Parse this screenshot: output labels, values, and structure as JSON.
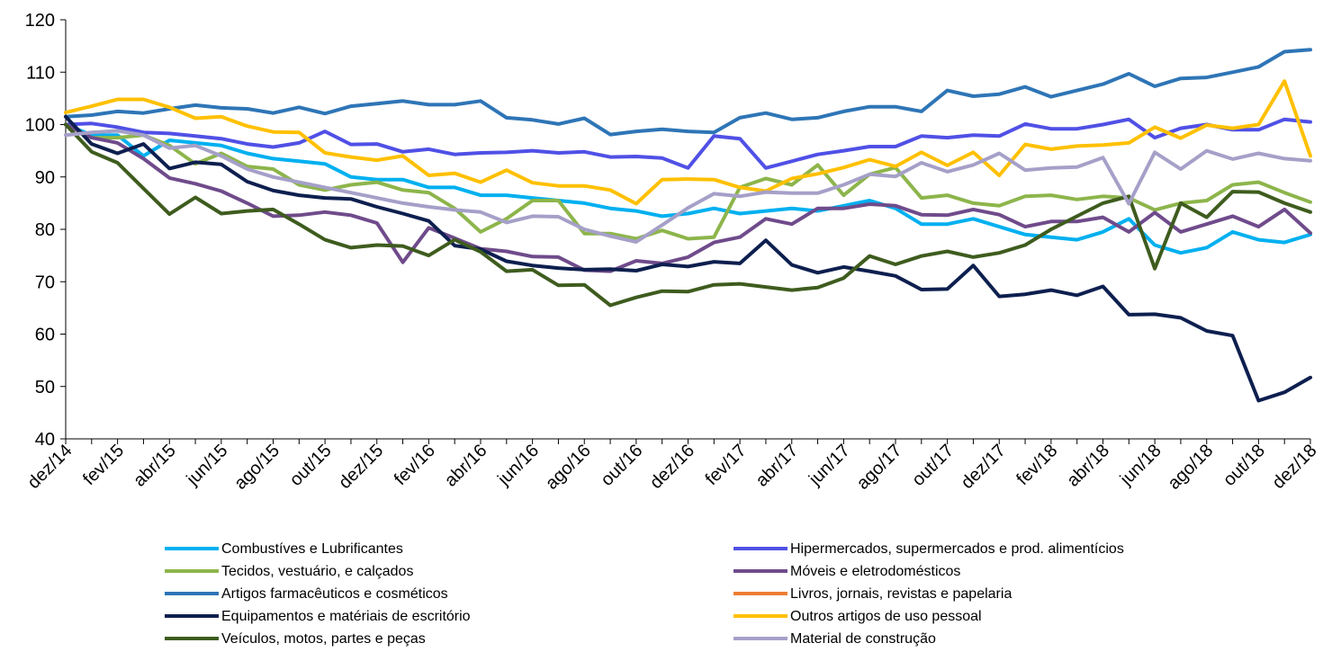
{
  "chart_data": {
    "type": "line",
    "categories": [
      "dez/14",
      null,
      "fev/15",
      null,
      "abr/15",
      null,
      "jun/15",
      null,
      "ago/15",
      null,
      "out/15",
      null,
      "dez/15",
      null,
      "fev/16",
      null,
      "abr/16",
      null,
      "jun/16",
      null,
      "ago/16",
      null,
      "out/16",
      null,
      "dez/16",
      null,
      "fev/17",
      null,
      "abr/17",
      null,
      "jun/17",
      null,
      "ago/17",
      null,
      "out/17",
      null,
      "dez/17",
      null,
      "fev/18",
      null,
      "abr/18",
      null,
      "jun/18",
      null,
      "ago/18",
      null,
      "out/18",
      null,
      "dez/18"
    ],
    "ylim": [
      40,
      120
    ],
    "yticks": [
      40,
      50,
      60,
      70,
      80,
      90,
      100,
      110,
      120
    ],
    "grid": false,
    "series": [
      {
        "name": "Combustíves e Lubrificantes",
        "color": "#00b0f0",
        "values": [
          100,
          98,
          98,
          94,
          97,
          96.5,
          96,
          94.5,
          93.5,
          93,
          92.5,
          90,
          89.5,
          89.5,
          88,
          88,
          86.5,
          86.5,
          86,
          85.5,
          85,
          84,
          83.5,
          82.5,
          83,
          84,
          83,
          83.5,
          84,
          83.5,
          84.5,
          85.5,
          84,
          81,
          81,
          82,
          80.5,
          79,
          78.5,
          78,
          79.5,
          82,
          77,
          75.5,
          76.5,
          79.5,
          78,
          77.5,
          79
        ]
      },
      {
        "name": "Hipermercados, supermercados e prod. alimentícios",
        "color": "#5050e6",
        "values": [
          100,
          100.2,
          99.5,
          98.5,
          98.3,
          97.8,
          97.3,
          96.3,
          95.7,
          96.5,
          98.7,
          96.2,
          96.3,
          94.8,
          95.3,
          94.3,
          94.6,
          94.7,
          95,
          94.6,
          94.8,
          93.8,
          93.9,
          93.6,
          91.7,
          97.8,
          97.3,
          91.7,
          93,
          94.3,
          95,
          95.8,
          95.8,
          97.8,
          97.5,
          98,
          97.8,
          100.1,
          99.2,
          99.2,
          100,
          101,
          97.5,
          99.3,
          100,
          99,
          99,
          101,
          100.5
        ]
      },
      {
        "name": "Tecidos, vestuário, e calçados",
        "color": "#8db54b",
        "values": [
          100,
          97.5,
          97.5,
          98,
          96,
          92.5,
          94.5,
          92,
          91.5,
          88.5,
          87.5,
          88.5,
          89,
          87.5,
          87,
          84,
          79.5,
          82,
          85.5,
          85.5,
          79.2,
          79.2,
          78.2,
          79.8,
          78.2,
          78.5,
          88,
          89.7,
          88.5,
          92.3,
          86.5,
          90.5,
          91.8,
          86,
          86.5,
          85,
          84.5,
          86.3,
          86.5,
          85.7,
          86.3,
          86,
          83.7,
          85,
          85.5,
          88.5,
          89,
          87,
          85.2
        ]
      },
      {
        "name": "Móveis e eletrodomésticos",
        "color": "#6f4b8b",
        "values": [
          100,
          97.5,
          96.5,
          93.5,
          89.8,
          88.7,
          87.3,
          85,
          82.5,
          82.7,
          83.3,
          82.7,
          81.2,
          73.7,
          80.3,
          78.3,
          76.3,
          75.8,
          74.8,
          74.7,
          72.2,
          72,
          74,
          73.5,
          74.7,
          77.5,
          78.5,
          82,
          81,
          84,
          84,
          84.8,
          84.5,
          82.8,
          82.7,
          83.8,
          82.8,
          80.5,
          81.5,
          81.5,
          82.3,
          79.5,
          83.2,
          79.5,
          81,
          82.5,
          80.5,
          83.8,
          79.3
        ]
      },
      {
        "name": "Artigos farmacêuticos e cosméticos",
        "color": "#2e75b6",
        "values": [
          101.5,
          101.8,
          102.5,
          102.2,
          103,
          103.7,
          103.2,
          103,
          102.2,
          103.3,
          102.1,
          103.5,
          104,
          104.5,
          103.8,
          103.8,
          104.5,
          101.3,
          100.9,
          100.1,
          101.2,
          98.1,
          98.7,
          99.1,
          98.7,
          98.5,
          101.3,
          102.2,
          101,
          101.3,
          102.5,
          103.4,
          103.4,
          102.5,
          106.5,
          105.4,
          105.8,
          107.2,
          105.3,
          106.5,
          107.7,
          109.7,
          107.3,
          108.8,
          109,
          110,
          111,
          113.9,
          114.3
        ]
      },
      {
        "name": "Livros, jornais, revistas e papelaria",
        "color": "#ed7d31",
        "values": [
          null,
          null,
          null,
          null,
          null,
          null,
          null,
          null,
          null,
          null,
          null,
          null,
          null,
          null,
          null,
          null,
          null,
          null,
          null,
          null,
          null,
          null,
          null,
          null,
          null,
          null,
          null,
          null,
          null,
          null,
          null,
          null,
          null,
          null,
          null,
          null,
          null,
          null,
          null,
          null,
          null,
          null,
          null,
          null,
          null,
          null,
          null,
          null,
          null
        ]
      },
      {
        "name": "Equipamentos e matériais de escritório",
        "color": "#0d1f4f",
        "values": [
          101.5,
          96.3,
          94.5,
          96.3,
          91.6,
          92.8,
          92.4,
          89.1,
          87.4,
          86.5,
          86,
          85.8,
          84.3,
          83,
          81.6,
          76.9,
          76.2,
          73.9,
          73.1,
          72.6,
          72.3,
          72.4,
          72.1,
          73.3,
          72.9,
          73.8,
          73.5,
          77.9,
          73.2,
          71.7,
          72.8,
          72,
          71.1,
          68.5,
          68.6,
          73.1,
          67.2,
          67.6,
          68.4,
          67.4,
          69.1,
          63.7,
          63.8,
          63.1,
          60.6,
          59.7,
          47.3,
          48.9,
          51.7
        ]
      },
      {
        "name": "Outros artigos de uso pessoal",
        "color": "#ffc000",
        "values": [
          102.3,
          103.5,
          104.8,
          104.8,
          103.3,
          101.2,
          101.5,
          99.7,
          98.6,
          98.5,
          94.6,
          93.8,
          93.2,
          94,
          90.3,
          90.7,
          89,
          91.3,
          88.9,
          88.3,
          88.3,
          87.5,
          84.9,
          89.5,
          89.6,
          89.5,
          88,
          87.3,
          89.7,
          90.6,
          91.8,
          93.3,
          92,
          94.7,
          92.2,
          94.7,
          90.3,
          96.2,
          95.3,
          95.9,
          96.1,
          96.5,
          99.5,
          97.4,
          99.9,
          99.3,
          100,
          108.3,
          94
        ]
      },
      {
        "name": "Veículos, motos, partes e peças",
        "color": "#3e5c1e",
        "values": [
          100,
          94.8,
          92.7,
          87.8,
          82.9,
          86.1,
          83,
          83.5,
          83.8,
          81,
          78,
          76.5,
          77,
          76.8,
          75,
          78,
          75.7,
          72,
          72.3,
          69.3,
          69.4,
          65.5,
          67,
          68.2,
          68.1,
          69.4,
          69.6,
          69,
          68.4,
          68.9,
          70.7,
          74.9,
          73.3,
          74.9,
          75.8,
          74.7,
          75.5,
          77,
          80,
          82.5,
          85,
          86.3,
          72.5,
          85,
          82.3,
          87.2,
          87.1,
          85,
          83.3
        ]
      },
      {
        "name": "Material de construção",
        "color": "#a5a0c8",
        "values": [
          98,
          98.5,
          98.8,
          98,
          95.5,
          96,
          94,
          91.5,
          90,
          89,
          88,
          87,
          86,
          85,
          84.3,
          83.7,
          83.3,
          81.3,
          82.5,
          82.4,
          80,
          78.7,
          77.6,
          80.8,
          84.1,
          86.8,
          86.3,
          87.1,
          86.9,
          86.9,
          88.5,
          90.5,
          90.1,
          92.7,
          91,
          92.3,
          94.5,
          91.3,
          91.7,
          91.9,
          93.7,
          84.9,
          94.7,
          91.5,
          95,
          93.4,
          94.5,
          93.5,
          93.1
        ]
      }
    ]
  }
}
